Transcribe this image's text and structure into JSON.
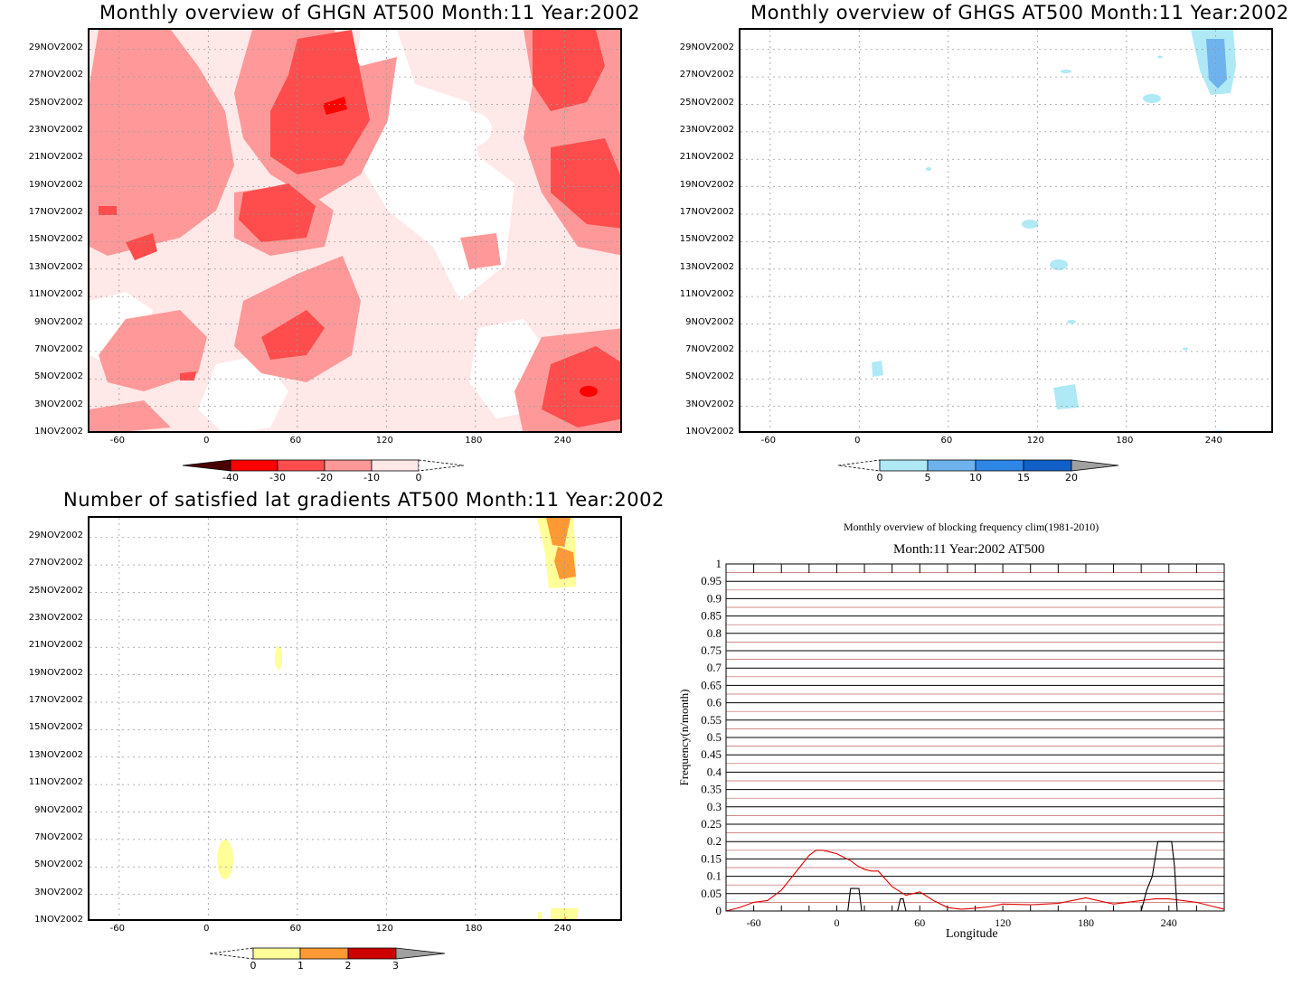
{
  "panel_ghgn": {
    "title": "Monthly overview of GHGN AT500 Month:11 Year:2002",
    "ylabels": [
      "29NOV2002",
      "27NOV2002",
      "25NOV2002",
      "23NOV2002",
      "21NOV2002",
      "19NOV2002",
      "17NOV2002",
      "15NOV2002",
      "13NOV2002",
      "11NOV2002",
      "9NOV2002",
      "7NOV2002",
      "5NOV2002",
      "3NOV2002",
      "1NOV2002"
    ],
    "xlabels": [
      "-60",
      "0",
      "60",
      "120",
      "180",
      "240"
    ],
    "colorbar_labels": [
      "-40",
      "-30",
      "-20",
      "-10",
      "0"
    ],
    "colors": [
      "#4a0000",
      "#ff0000",
      "#ff4c4c",
      "#ff9999",
      "#ffe8e8",
      "#ffffff"
    ]
  },
  "panel_ghgs": {
    "title": "Monthly overview of GHGS AT500 Month:11 Year:2002",
    "ylabels": [
      "29NOV2002",
      "27NOV2002",
      "25NOV2002",
      "23NOV2002",
      "21NOV2002",
      "19NOV2002",
      "17NOV2002",
      "15NOV2002",
      "13NOV2002",
      "11NOV2002",
      "9NOV2002",
      "7NOV2002",
      "5NOV2002",
      "3NOV2002",
      "1NOV2002"
    ],
    "xlabels": [
      "-60",
      "0",
      "60",
      "120",
      "180",
      "240"
    ],
    "colorbar_labels": [
      "0",
      "5",
      "10",
      "15",
      "20"
    ],
    "colors": [
      "#aee9f5",
      "#6fb3ee",
      "#2e86e6",
      "#1060c8",
      "#a0a0a0"
    ]
  },
  "panel_lat": {
    "title": "Number of satisfied lat gradients AT500 Month:11 Year:2002",
    "ylabels": [
      "29NOV2002",
      "27NOV2002",
      "25NOV2002",
      "23NOV2002",
      "21NOV2002",
      "19NOV2002",
      "17NOV2002",
      "15NOV2002",
      "13NOV2002",
      "11NOV2002",
      "9NOV2002",
      "7NOV2002",
      "5NOV2002",
      "3NOV2002",
      "1NOV2002"
    ],
    "xlabels": [
      "-60",
      "0",
      "60",
      "120",
      "180",
      "240"
    ],
    "colorbar_labels": [
      "0",
      "1",
      "2",
      "3"
    ],
    "colors": [
      "#ffff99",
      "#ff9933",
      "#cc0000",
      "#a0a0a0"
    ]
  },
  "chart_data": {
    "type": "line",
    "title": "Monthly overview of blocking frequency clim(1981-2010)",
    "subtitle": "Month:11 Year:2002  AT500",
    "xlabel": "Longitude",
    "ylabel": "Frequency(n/month)",
    "xlim": [
      -80,
      280
    ],
    "ylim": [
      0,
      1
    ],
    "xticks": [
      "-60",
      "0",
      "60",
      "120",
      "180",
      "240"
    ],
    "yticks": [
      "0",
      "0.05",
      "0.1",
      "0.15",
      "0.2",
      "0.25",
      "0.3",
      "0.35",
      "0.4",
      "0.45",
      "0.5",
      "0.55",
      "0.6",
      "0.65",
      "0.7",
      "0.75",
      "0.8",
      "0.85",
      "0.9",
      "0.95",
      "1"
    ],
    "grid": true,
    "series": [
      {
        "color": "#e00000",
        "x": [
          -80,
          -70,
          -60,
          -50,
          -40,
          -30,
          -20,
          -15,
          -10,
          -5,
          0,
          5,
          10,
          15,
          20,
          25,
          30,
          40,
          50,
          60,
          70,
          80,
          90,
          100,
          110,
          120,
          140,
          160,
          180,
          200,
          220,
          230,
          240,
          250,
          260,
          270,
          280
        ],
        "y": [
          0.0,
          0.01,
          0.025,
          0.03,
          0.06,
          0.11,
          0.16,
          0.175,
          0.175,
          0.17,
          0.165,
          0.155,
          0.145,
          0.13,
          0.12,
          0.115,
          0.115,
          0.07,
          0.045,
          0.055,
          0.03,
          0.01,
          0.005,
          0.008,
          0.012,
          0.02,
          0.018,
          0.022,
          0.038,
          0.02,
          0.03,
          0.035,
          0.035,
          0.03,
          0.025,
          0.015,
          0.005
        ]
      },
      {
        "color": "#000000",
        "x": [
          -80,
          8,
          10,
          16,
          18,
          44,
          46,
          48,
          50,
          220,
          222,
          224,
          228,
          232,
          238,
          242,
          244,
          246,
          280
        ],
        "y": [
          0,
          0,
          0.065,
          0.065,
          0,
          0,
          0.035,
          0.035,
          0,
          0,
          0.03,
          0.06,
          0.1,
          0.2,
          0.2,
          0.2,
          0.13,
          0.0,
          0
        ]
      }
    ]
  }
}
